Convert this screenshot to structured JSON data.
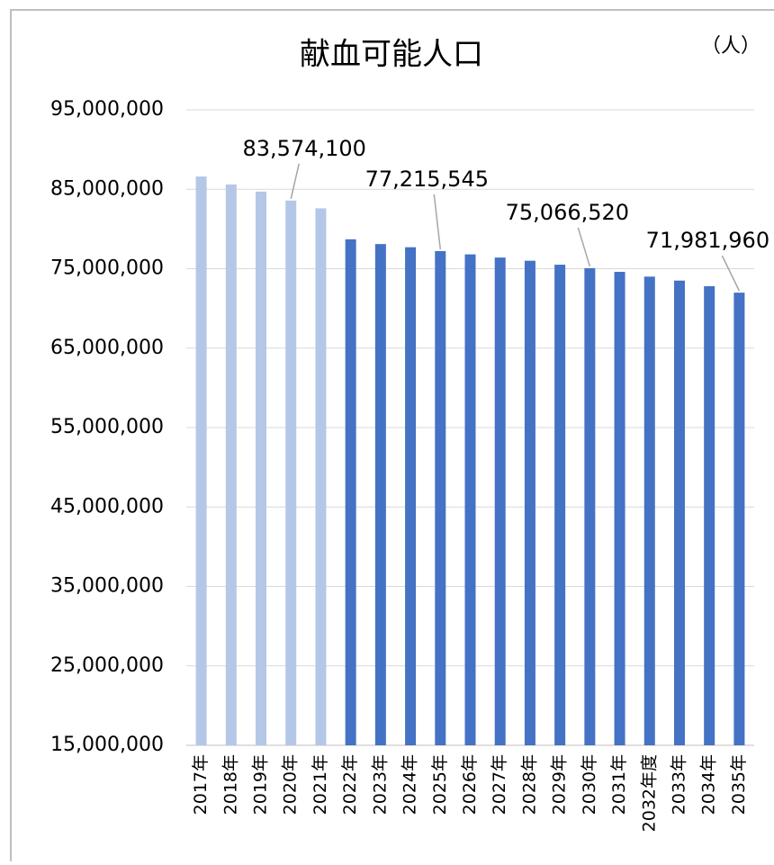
{
  "chart_data": {
    "type": "bar",
    "title": "献血可能人口",
    "unit_label": "（人）",
    "categories": [
      "2017年",
      "2018年",
      "2019年",
      "2020年",
      "2021年",
      "2022年",
      "2023年",
      "2024年",
      "2025年",
      "2026年",
      "2027年",
      "2028年",
      "2029年",
      "2030年",
      "2031年",
      "2032年度",
      "2033年",
      "2034年",
      "2035年"
    ],
    "series": [
      {
        "name": "献血可能人口",
        "colors": [
          "#b4c7e7",
          "#b4c7e7",
          "#b4c7e7",
          "#b4c7e7",
          "#b4c7e7",
          "#4472c4",
          "#4472c4",
          "#4472c4",
          "#4472c4",
          "#4472c4",
          "#4472c4",
          "#4472c4",
          "#4472c4",
          "#4472c4",
          "#4472c4",
          "#4472c4",
          "#4472c4",
          "#4472c4",
          "#4472c4"
        ],
        "values": [
          86600000,
          85600000,
          84700000,
          83574100,
          82600000,
          78700000,
          78100000,
          77700000,
          77215545,
          76800000,
          76400000,
          76000000,
          75500000,
          75066520,
          74600000,
          74000000,
          73500000,
          72800000,
          71981960
        ],
        "value_labels": [
          null,
          null,
          null,
          "83,574,100",
          null,
          null,
          null,
          null,
          "77,215,545",
          null,
          null,
          null,
          null,
          "75,066,520",
          null,
          null,
          null,
          null,
          "71,981,960"
        ]
      }
    ],
    "ylim": [
      15000000,
      95000000
    ],
    "yticks": [
      {
        "value": 15000000,
        "label": "15,000,000"
      },
      {
        "value": 25000000,
        "label": "25,000,000"
      },
      {
        "value": 35000000,
        "label": "35,000,000"
      },
      {
        "value": 45000000,
        "label": "45,000,000"
      },
      {
        "value": 55000000,
        "label": "55,000,000"
      },
      {
        "value": 65000000,
        "label": "65,000,000"
      },
      {
        "value": 75000000,
        "label": "75,000,000"
      },
      {
        "value": 85000000,
        "label": "85,000,000"
      },
      {
        "value": 95000000,
        "label": "95,000,000"
      }
    ],
    "grid": true
  }
}
